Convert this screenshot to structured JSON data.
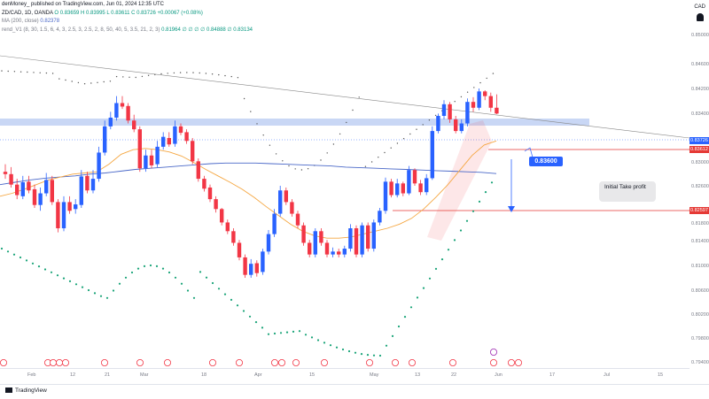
{
  "header": {
    "published": "denMoney_ published on TradingView.com, Jun 01, 2024 12:35 UTC",
    "symbol": "ZD/CAD, 1D, OANDA",
    "ohlc": "O 0.83659  H 0.83995  L 0.83611  C 0.83726  +0.00067 (+0.08%)",
    "ma": "MA (200, close)",
    "ma_value": "0.82378",
    "indicator": "rend_V1 (8, 30, 1.5, 6, 4, 3, 2.5, 3, 2.5, 2, 8, 50, 40, 5, 3.5, 21, 2, 3)",
    "indicator_values": "0.81964  ∅  ∅  ∅  ∅  0.84888  ∅  0.83134"
  },
  "currency": "CAD",
  "price_axis": {
    "ticks": [
      "0.85000",
      "0.84600",
      "0.84200",
      "0.83400",
      "0.83000",
      "0.82600",
      "0.82200",
      "0.81800",
      "0.81400",
      "0.81000",
      "0.80600",
      "0.80200",
      "0.79800",
      "0.79400"
    ],
    "current_label": "0.83726",
    "level1_label": "0.83612",
    "level2_label": "0.82597"
  },
  "time_axis": {
    "ticks": [
      "Feb",
      "12",
      "21",
      "Mar",
      "18",
      "Apr",
      "15",
      "May",
      "13",
      "22",
      "Jun",
      "17",
      "Jul",
      "15"
    ]
  },
  "annotations": {
    "target_label": "0.83600",
    "take_profit_label": "Initial Take profit"
  },
  "footer": {
    "brand": "TradingView"
  },
  "colors": {
    "bull": "#2962ff",
    "bear": "#f23645",
    "ma200": "#4a68c8",
    "ema": "#f5a742",
    "support_zone": "#c9d7f5",
    "level_line": "#e53935"
  },
  "chart_data": {
    "type": "candlestick",
    "title": "ZD/CAD, 1D, OANDA",
    "ylim": [
      0.7925,
      0.8557
    ],
    "series_candles": {
      "name": "ZD/CAD",
      "open": [
        0.8262,
        0.8258,
        0.824,
        0.822,
        0.8245,
        0.8232,
        0.8205,
        0.8225,
        0.8248,
        0.821,
        0.8165,
        0.821,
        0.8198,
        0.8205,
        0.8255,
        0.823,
        0.825,
        0.8295,
        0.834,
        0.8355,
        0.838,
        0.8375,
        0.835,
        0.8335,
        0.8268,
        0.829,
        0.8275,
        0.8305,
        0.832,
        0.831,
        0.834,
        0.833,
        0.8315,
        0.828,
        0.825,
        0.8235,
        0.8215,
        0.8198,
        0.8175,
        0.816,
        0.814,
        0.8115,
        0.8085,
        0.8105,
        0.809,
        0.8125,
        0.8155,
        0.819,
        0.823,
        0.821,
        0.819,
        0.817,
        0.814,
        0.812,
        0.816,
        0.814,
        0.812,
        0.8125,
        0.812,
        0.813,
        0.8165,
        0.812,
        0.817,
        0.813,
        0.8175,
        0.8195,
        0.8245,
        0.8222,
        0.8242,
        0.8225,
        0.8265,
        0.8242,
        0.8227,
        0.8251,
        0.8332,
        0.8358,
        0.8378,
        0.8352,
        0.8332,
        0.8345,
        0.8382,
        0.8372,
        0.84,
        0.8392,
        0.8372
      ],
      "close": [
        0.8258,
        0.824,
        0.8222,
        0.8244,
        0.823,
        0.8205,
        0.8225,
        0.8248,
        0.821,
        0.8165,
        0.821,
        0.8195,
        0.8206,
        0.8254,
        0.823,
        0.825,
        0.8295,
        0.834,
        0.8355,
        0.838,
        0.8374,
        0.835,
        0.8335,
        0.8268,
        0.829,
        0.8273,
        0.8305,
        0.8322,
        0.8309,
        0.834,
        0.8329,
        0.8315,
        0.828,
        0.825,
        0.8233,
        0.8215,
        0.8198,
        0.8175,
        0.816,
        0.814,
        0.8115,
        0.8085,
        0.8104,
        0.8088,
        0.8125,
        0.8155,
        0.819,
        0.823,
        0.821,
        0.819,
        0.817,
        0.814,
        0.812,
        0.816,
        0.814,
        0.812,
        0.8125,
        0.812,
        0.813,
        0.8165,
        0.812,
        0.817,
        0.813,
        0.8175,
        0.8195,
        0.8245,
        0.8222,
        0.8242,
        0.8225,
        0.8265,
        0.8242,
        0.8227,
        0.8251,
        0.8332,
        0.8358,
        0.8378,
        0.8352,
        0.8332,
        0.8345,
        0.8382,
        0.8372,
        0.84,
        0.8392,
        0.8372,
        0.8362
      ],
      "high": [
        0.8275,
        0.827,
        0.825,
        0.8255,
        0.8255,
        0.824,
        0.8235,
        0.826,
        0.8255,
        0.8215,
        0.822,
        0.822,
        0.8215,
        0.8265,
        0.8262,
        0.8265,
        0.8305,
        0.835,
        0.8365,
        0.8392,
        0.8392,
        0.838,
        0.836,
        0.834,
        0.83,
        0.83,
        0.8315,
        0.833,
        0.833,
        0.835,
        0.8345,
        0.8335,
        0.832,
        0.8285,
        0.8255,
        0.824,
        0.822,
        0.82,
        0.818,
        0.8165,
        0.8145,
        0.812,
        0.8112,
        0.811,
        0.813,
        0.8162,
        0.8198,
        0.8238,
        0.8235,
        0.8215,
        0.8195,
        0.8175,
        0.8145,
        0.8165,
        0.8165,
        0.8145,
        0.8132,
        0.813,
        0.8135,
        0.8172,
        0.817,
        0.8175,
        0.8175,
        0.818,
        0.82,
        0.8252,
        0.825,
        0.825,
        0.8245,
        0.8272,
        0.8268,
        0.8248,
        0.8258,
        0.834,
        0.8362,
        0.8385,
        0.8382,
        0.8358,
        0.8352,
        0.8388,
        0.839,
        0.8405,
        0.8402,
        0.8398,
        0.8395
      ],
      "low": [
        0.825,
        0.8235,
        0.8215,
        0.8215,
        0.8225,
        0.82,
        0.8195,
        0.822,
        0.8205,
        0.8158,
        0.816,
        0.819,
        0.819,
        0.82,
        0.8225,
        0.8225,
        0.8245,
        0.829,
        0.8335,
        0.835,
        0.837,
        0.8345,
        0.833,
        0.8262,
        0.8262,
        0.8268,
        0.827,
        0.83,
        0.8305,
        0.8305,
        0.8325,
        0.831,
        0.8275,
        0.8245,
        0.8228,
        0.821,
        0.8192,
        0.817,
        0.8155,
        0.8135,
        0.811,
        0.808,
        0.808,
        0.8082,
        0.8085,
        0.812,
        0.815,
        0.8185,
        0.8205,
        0.8185,
        0.8165,
        0.8135,
        0.8115,
        0.8115,
        0.8135,
        0.8115,
        0.8115,
        0.8115,
        0.8115,
        0.8125,
        0.8115,
        0.8115,
        0.8125,
        0.8125,
        0.817,
        0.819,
        0.8218,
        0.8218,
        0.822,
        0.8222,
        0.8238,
        0.8222,
        0.8222,
        0.8248,
        0.8328,
        0.8352,
        0.8346,
        0.8328,
        0.8328,
        0.834,
        0.8365,
        0.8368,
        0.8385,
        0.8365,
        0.8361
      ]
    },
    "series_ma200": {
      "name": "MA (200, close)",
      "values": [
        0.824,
        0.8244,
        0.8248,
        0.8251,
        0.8253,
        0.8255,
        0.8258,
        0.826,
        0.8263,
        0.8266,
        0.8268,
        0.827,
        0.8272,
        0.8274,
        0.8276,
        0.8277,
        0.8277,
        0.8277,
        0.8276,
        0.8275,
        0.8274,
        0.8273,
        0.8272,
        0.827,
        0.8269,
        0.8268,
        0.8267,
        0.8266,
        0.8265,
        0.8264,
        0.8263,
        0.8262,
        0.8261,
        0.8259
      ]
    },
    "series_ema": {
      "name": "",
      "values": [
        0.822,
        0.8225,
        0.8232,
        0.824,
        0.8248,
        0.8253,
        0.8258,
        0.826,
        0.8262,
        0.8275,
        0.8292,
        0.83,
        0.8302,
        0.83,
        0.8296,
        0.8289,
        0.8278,
        0.8266,
        0.8255,
        0.8244,
        0.8232,
        0.8218,
        0.8202,
        0.8187,
        0.8172,
        0.816,
        0.8152,
        0.8148,
        0.8148,
        0.815,
        0.8155,
        0.816,
        0.8165,
        0.8172,
        0.8182,
        0.8198,
        0.8218,
        0.824,
        0.8265,
        0.829,
        0.8308,
        0.8315
      ]
    }
  }
}
